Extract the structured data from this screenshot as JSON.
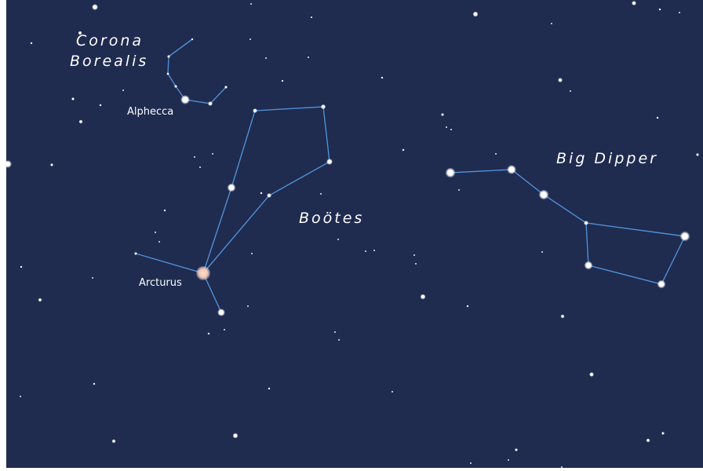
{
  "labels": {
    "corona_1": "Corona",
    "corona_2": "Borealis",
    "alphecca": "Alphecca",
    "bootes": "Boötes",
    "arcturus": "Arcturus",
    "big_dipper": "Big Dipper"
  }
}
